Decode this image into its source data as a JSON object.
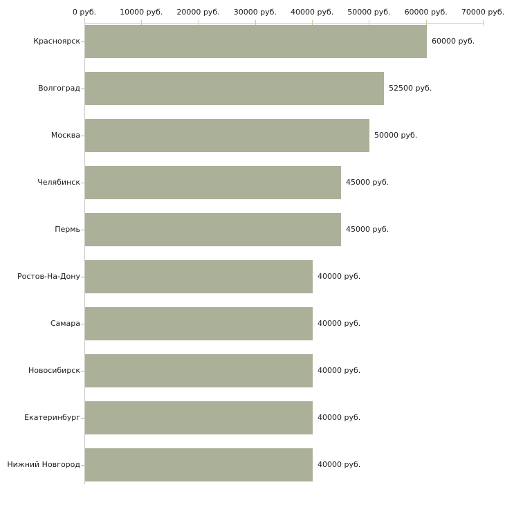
{
  "chart_data": {
    "type": "bar",
    "orientation": "horizontal",
    "title": "",
    "xlabel": "",
    "ylabel": "",
    "unit": "руб.",
    "categories": [
      "Красноярск",
      "Волгоград",
      "Москва",
      "Челябинск",
      "Пермь",
      "Ростов-На-Дону",
      "Самара",
      "Новосибирск",
      "Екатеринбург",
      "Нижний Новгород"
    ],
    "values": [
      60000,
      52500,
      50000,
      45000,
      45000,
      40000,
      40000,
      40000,
      40000,
      40000
    ],
    "value_labels": [
      "60000 руб.",
      "52500 руб.",
      "50000 руб.",
      "45000 руб.",
      "45000 руб.",
      "40000 руб.",
      "40000 руб.",
      "40000 руб.",
      "40000 руб.",
      "40000 руб."
    ],
    "x_axis": {
      "position": "top",
      "xlim": [
        0,
        70000
      ],
      "tick_values": [
        0,
        10000,
        20000,
        30000,
        40000,
        50000,
        60000,
        70000
      ],
      "tick_labels": [
        "0 руб.",
        "10000 руб.",
        "20000 руб.",
        "30000 руб.",
        "40000 руб.",
        "50000 руб.",
        "60000 руб.",
        "70000 руб."
      ]
    },
    "grid": false,
    "legend": null,
    "colors": {
      "bar": "#abb199",
      "axis_line": "#c6c6c6",
      "interval_tick": "#cccc99",
      "origin_tick": "#c6c6c6",
      "text": "#1a1a1a",
      "background": "#ffffff"
    }
  }
}
